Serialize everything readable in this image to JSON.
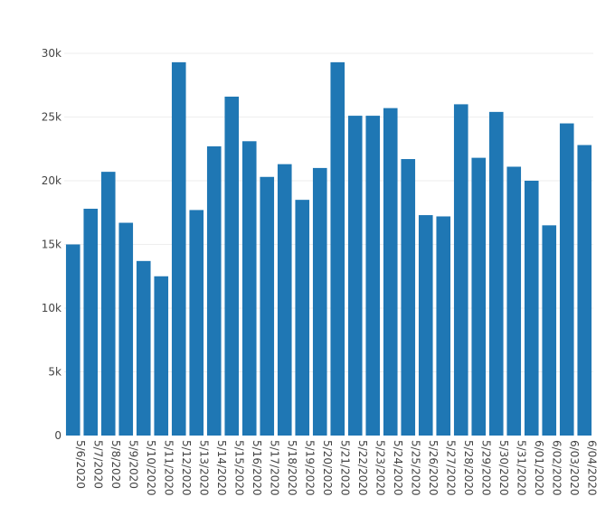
{
  "chart_data": {
    "type": "bar",
    "categories": [
      "5/6/2020",
      "5/7/2020",
      "5/8/2020",
      "5/9/2020",
      "5/10/2020",
      "5/11/2020",
      "5/12/2020",
      "5/13/2020",
      "5/14/2020",
      "5/15/2020",
      "5/16/2020",
      "5/17/2020",
      "5/18/2020",
      "5/19/2020",
      "5/20/2020",
      "5/21/2020",
      "5/22/2020",
      "5/23/2020",
      "5/24/2020",
      "5/25/2020",
      "5/26/2020",
      "5/27/2020",
      "5/28/2020",
      "5/29/2020",
      "5/30/2020",
      "5/31/2020",
      "6/01/2020",
      "6/02/2020",
      "6/03/2020",
      "6/04/2020"
    ],
    "values": [
      15000,
      17800,
      20700,
      16700,
      13700,
      12500,
      29300,
      17700,
      22700,
      26600,
      23100,
      20300,
      21300,
      18500,
      21000,
      29300,
      25100,
      25100,
      25700,
      21700,
      17300,
      17200,
      26000,
      21800,
      25400,
      21100,
      20000,
      16500,
      24500,
      22800
    ],
    "ylim": [
      0,
      30000
    ],
    "yticks": [
      0,
      5000,
      10000,
      15000,
      20000,
      25000,
      30000
    ],
    "ytick_labels": [
      "0",
      "5k",
      "10k",
      "15k",
      "20k",
      "25k",
      "30k"
    ],
    "grid": true,
    "bar_color": "#1f77b4",
    "grid_color": "#eeeeee",
    "title": "",
    "xlabel": "",
    "ylabel": ""
  }
}
